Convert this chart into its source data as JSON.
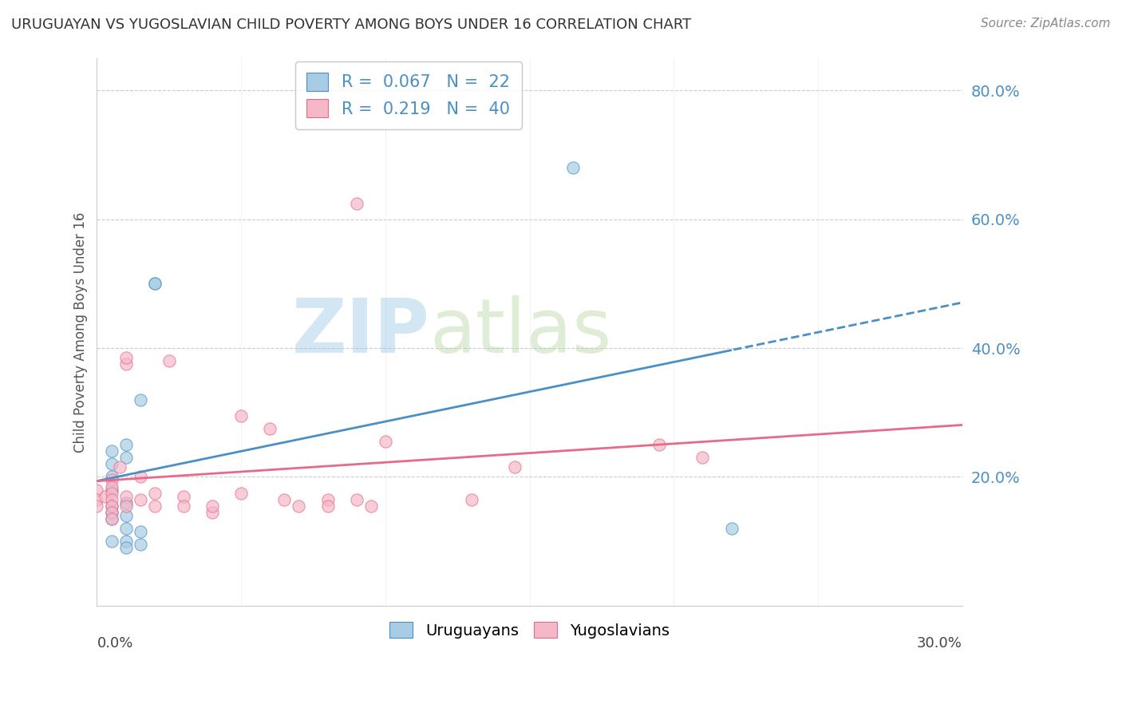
{
  "title": "URUGUAYAN VS YUGOSLAVIAN CHILD POVERTY AMONG BOYS UNDER 16 CORRELATION CHART",
  "source": "Source: ZipAtlas.com",
  "xmin": 0.0,
  "xmax": 0.3,
  "ymin": 0.0,
  "ymax": 0.85,
  "legend_blue_r": "0.067",
  "legend_blue_n": "22",
  "legend_pink_r": "0.219",
  "legend_pink_n": "40",
  "color_blue": "#a8cce3",
  "color_pink": "#f4b8c8",
  "color_blue_line": "#4a90c4",
  "color_pink_line": "#e86a8a",
  "watermark_zip": "ZIP",
  "watermark_atlas": "atlas",
  "uruguayan_x": [
    0.005,
    0.005,
    0.005,
    0.005,
    0.005,
    0.005,
    0.005,
    0.005,
    0.01,
    0.01,
    0.01,
    0.01,
    0.01,
    0.01,
    0.01,
    0.015,
    0.015,
    0.015,
    0.02,
    0.02,
    0.22,
    0.165
  ],
  "uruguayan_y": [
    0.24,
    0.22,
    0.2,
    0.18,
    0.155,
    0.145,
    0.135,
    0.1,
    0.25,
    0.23,
    0.16,
    0.14,
    0.12,
    0.1,
    0.09,
    0.32,
    0.115,
    0.095,
    0.5,
    0.5,
    0.12,
    0.68
  ],
  "yugoslavian_x": [
    0.0,
    0.0,
    0.0,
    0.003,
    0.005,
    0.005,
    0.005,
    0.005,
    0.005,
    0.005,
    0.005,
    0.008,
    0.01,
    0.01,
    0.01,
    0.01,
    0.015,
    0.015,
    0.02,
    0.02,
    0.025,
    0.03,
    0.03,
    0.04,
    0.04,
    0.05,
    0.05,
    0.06,
    0.065,
    0.07,
    0.08,
    0.08,
    0.09,
    0.09,
    0.095,
    0.1,
    0.13,
    0.145,
    0.195,
    0.21
  ],
  "yugoslavian_y": [
    0.18,
    0.165,
    0.155,
    0.17,
    0.195,
    0.185,
    0.175,
    0.165,
    0.155,
    0.145,
    0.135,
    0.215,
    0.375,
    0.385,
    0.17,
    0.155,
    0.2,
    0.165,
    0.175,
    0.155,
    0.38,
    0.17,
    0.155,
    0.145,
    0.155,
    0.295,
    0.175,
    0.275,
    0.165,
    0.155,
    0.165,
    0.155,
    0.625,
    0.165,
    0.155,
    0.255,
    0.165,
    0.215,
    0.25,
    0.23
  ]
}
